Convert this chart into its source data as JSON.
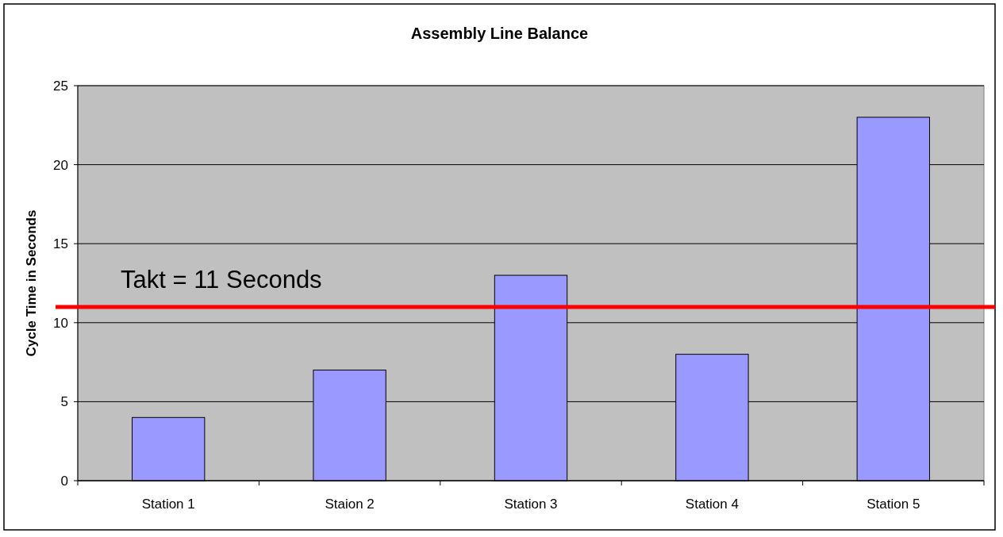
{
  "chart_data": {
    "type": "bar",
    "title": "Assembly Line Balance",
    "ylabel": "Cycle Time in Seconds",
    "categories": [
      "Station 1",
      "Staion 2",
      "Station 3",
      "Station 4",
      "Station 5"
    ],
    "values": [
      4,
      7,
      13,
      8,
      23
    ],
    "color": "#9999ff",
    "ylim": [
      0,
      25
    ],
    "yticks": [
      0,
      5,
      10,
      15,
      20,
      25
    ],
    "grid": "y",
    "ref_lines": [
      {
        "axis": "y",
        "value": 11,
        "label": "Takt = 11 Seconds",
        "color": "#ff0000"
      }
    ]
  }
}
